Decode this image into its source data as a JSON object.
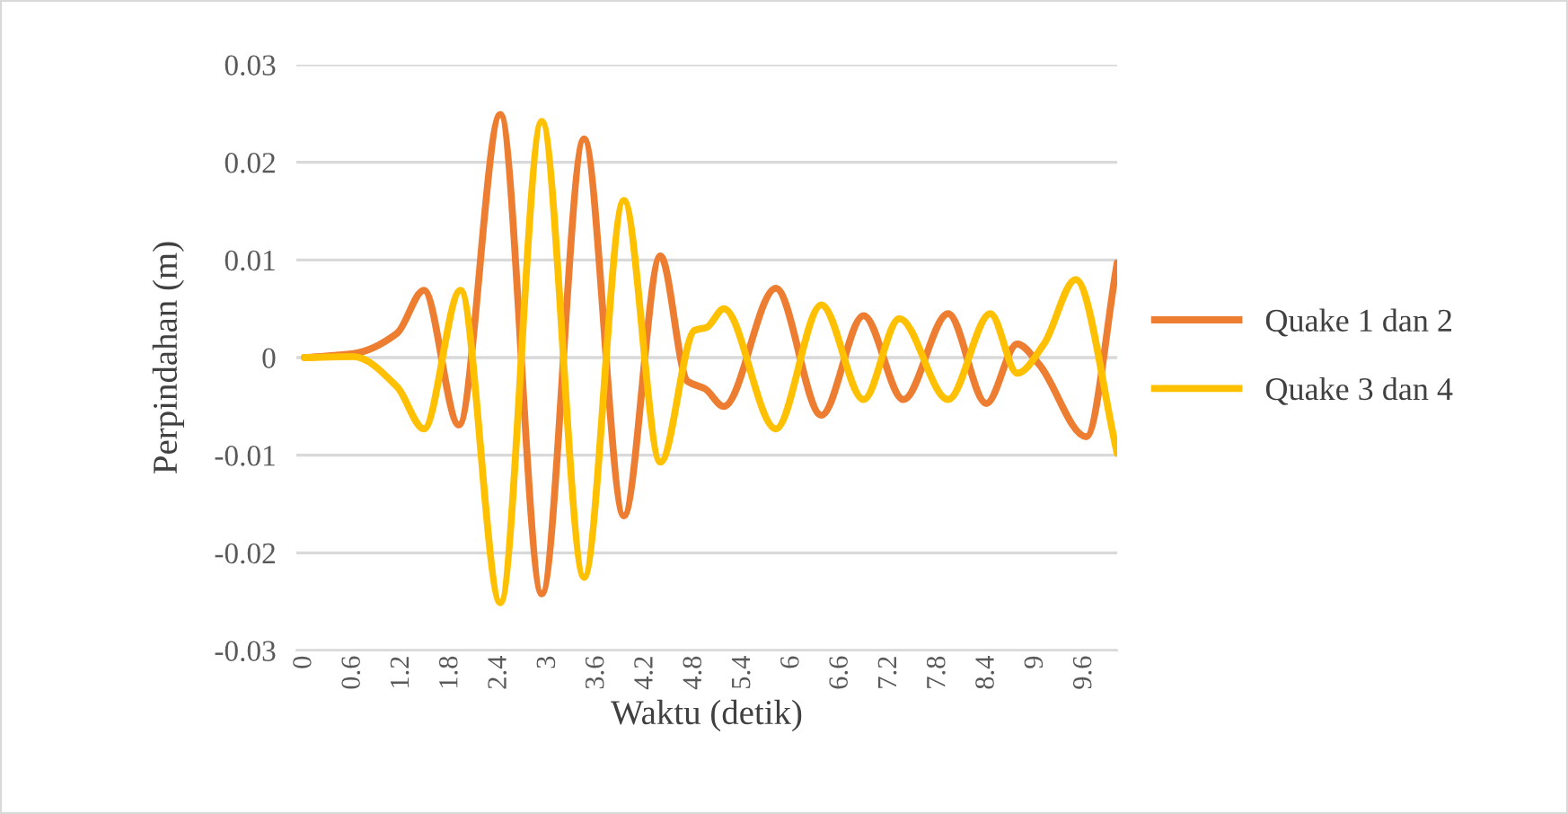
{
  "chart_data": {
    "type": "line",
    "xlabel": "Waktu (detik)",
    "ylabel": "Perpindahan (m)",
    "xlim": [
      -0.1,
      10.0
    ],
    "xticks": [
      0,
      0.6,
      1.2,
      1.8,
      2.4,
      3,
      3.6,
      4.2,
      4.8,
      5.4,
      6,
      6.6,
      7.2,
      7.8,
      8.4,
      9,
      9.6
    ],
    "ylim": [
      -0.03,
      0.03
    ],
    "yticks": [
      -0.03,
      -0.02,
      -0.01,
      0,
      0.01,
      0.02,
      0.03
    ],
    "grid": "y",
    "legend": "right",
    "marker": "none",
    "line_style": "solid",
    "series": [
      {
        "name": "Quake 1 dan 2",
        "color": "#ed7d31",
        "x": [
          0,
          0.6,
          1.14,
          1.47,
          1.9,
          2.41,
          2.92,
          3.44,
          3.93,
          4.38,
          4.71,
          4.93,
          5.16,
          5.8,
          6.36,
          6.88,
          7.37,
          7.92,
          8.39,
          8.77,
          9.04,
          9.62,
          10.0
        ],
        "values": [
          0,
          0.0004,
          0.0025,
          0.0069,
          -0.0069,
          0.0249,
          -0.0242,
          0.0224,
          -0.0162,
          0.0104,
          -0.0024,
          -0.0032,
          -0.005,
          0.0071,
          -0.0059,
          0.0043,
          -0.0043,
          0.0045,
          -0.0047,
          0.0014,
          -0.0007,
          -0.0081,
          0.0097
        ]
      },
      {
        "name": "Quake 3 dan 4",
        "color": "#ffc000",
        "x": [
          0,
          0.6,
          1.14,
          1.47,
          1.92,
          2.41,
          2.92,
          3.44,
          3.93,
          4.38,
          4.8,
          4.95,
          5.16,
          5.8,
          6.36,
          6.88,
          7.32,
          7.92,
          8.44,
          8.77,
          9.1,
          9.49,
          10.0
        ],
        "values": [
          0,
          0.0001,
          -0.003,
          -0.0073,
          0.0069,
          -0.0251,
          0.0242,
          -0.0225,
          0.0161,
          -0.0107,
          0.0028,
          0.0031,
          0.005,
          -0.0073,
          0.0054,
          -0.0043,
          0.004,
          -0.0043,
          0.0045,
          -0.0016,
          0.0014,
          0.008,
          -0.0098
        ]
      }
    ]
  }
}
